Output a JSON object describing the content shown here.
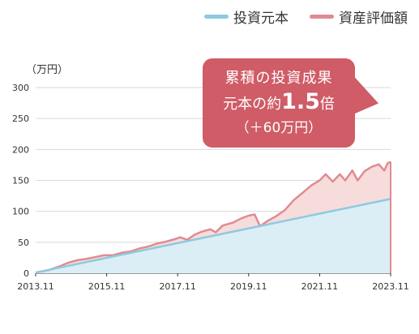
{
  "legend": {
    "principal": "投資元本",
    "valuation": "資産評価額"
  },
  "unit_label": "（万円）",
  "callout": {
    "line1": "累積の投資成果",
    "line2_prefix": "元本の約",
    "line2_multiplier": "1.5",
    "line2_suffix": "倍",
    "line3": "（＋60万円）"
  },
  "colors": {
    "principal_line": "#8ecae0",
    "principal_fill": "#dbeef5",
    "valuation_line": "#e08b91",
    "valuation_fill": "#f7dcdc",
    "callout_bg": "#cf5c66",
    "grid": "#d9d9d9"
  },
  "chart_data": {
    "type": "area",
    "ylabel": "（万円）",
    "ylim": [
      0,
      300
    ],
    "yticks": [
      0,
      50,
      100,
      150,
      200,
      250,
      300
    ],
    "xlim": [
      2013.83,
      2023.83
    ],
    "xticks": [
      {
        "x": 2013.83,
        "label": "2013.11"
      },
      {
        "x": 2015.83,
        "label": "2015.11"
      },
      {
        "x": 2017.83,
        "label": "2017.11"
      },
      {
        "x": 2019.83,
        "label": "2019.11"
      },
      {
        "x": 2021.83,
        "label": "2021.11"
      },
      {
        "x": 2023.83,
        "label": "2023.11"
      }
    ],
    "grid": true,
    "legend": "top-right",
    "series": [
      {
        "name": "投資元本",
        "points": [
          [
            2013.83,
            1
          ],
          [
            2023.83,
            120
          ]
        ]
      },
      {
        "name": "資産評価額",
        "points": [
          [
            2013.83,
            1
          ],
          [
            2014.2,
            5
          ],
          [
            2014.5,
            11
          ],
          [
            2014.75,
            17
          ],
          [
            2015.0,
            21
          ],
          [
            2015.25,
            23
          ],
          [
            2015.5,
            26
          ],
          [
            2015.75,
            29
          ],
          [
            2016.0,
            29
          ],
          [
            2016.25,
            33
          ],
          [
            2016.5,
            35
          ],
          [
            2016.75,
            40
          ],
          [
            2017.0,
            43
          ],
          [
            2017.25,
            48
          ],
          [
            2017.5,
            51
          ],
          [
            2017.75,
            55
          ],
          [
            2017.9,
            58
          ],
          [
            2018.1,
            54
          ],
          [
            2018.3,
            62
          ],
          [
            2018.5,
            67
          ],
          [
            2018.75,
            71
          ],
          [
            2018.9,
            66
          ],
          [
            2019.1,
            77
          ],
          [
            2019.4,
            82
          ],
          [
            2019.6,
            88
          ],
          [
            2019.83,
            93
          ],
          [
            2020.0,
            95
          ],
          [
            2020.15,
            76
          ],
          [
            2020.35,
            84
          ],
          [
            2020.6,
            92
          ],
          [
            2020.85,
            102
          ],
          [
            2021.1,
            118
          ],
          [
            2021.35,
            130
          ],
          [
            2021.6,
            142
          ],
          [
            2021.83,
            150
          ],
          [
            2022.0,
            160
          ],
          [
            2022.2,
            148
          ],
          [
            2022.4,
            160
          ],
          [
            2022.55,
            150
          ],
          [
            2022.75,
            166
          ],
          [
            2022.9,
            150
          ],
          [
            2023.1,
            165
          ],
          [
            2023.3,
            172
          ],
          [
            2023.5,
            176
          ],
          [
            2023.65,
            166
          ],
          [
            2023.75,
            178
          ],
          [
            2023.83,
            180
          ]
        ]
      }
    ]
  }
}
